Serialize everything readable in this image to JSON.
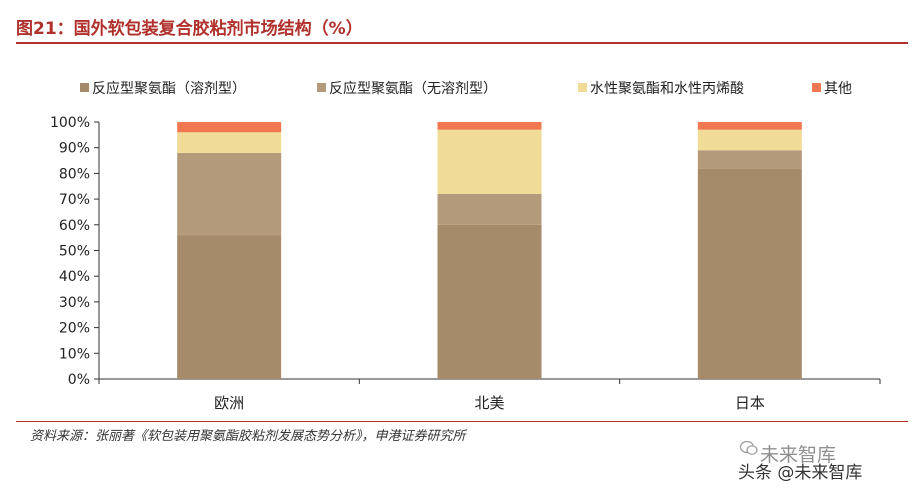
{
  "figure": {
    "title": "图21：国外软包装复合胶粘剂市场结构（%）",
    "source": "资料来源：张丽著《软包装用聚氨酯胶粘剂发展态势分析》，申港证券研究所"
  },
  "watermark": {
    "line1": "未来智库",
    "line2": "头条 @未来智库",
    "icon": "wechat-icon"
  },
  "chart_data": {
    "type": "bar",
    "stacked": true,
    "categories": [
      "欧洲",
      "北美",
      "日本"
    ],
    "series": [
      {
        "name": "反应型聚氨酯（溶剂型）",
        "values": [
          56,
          60,
          82
        ],
        "color": "#a68b6b"
      },
      {
        "name": "反应型聚氨酯（无溶剂型）",
        "values": [
          32,
          12,
          7
        ],
        "color": "#b39a7a"
      },
      {
        "name": "水性聚氨酯和水性丙烯酸",
        "values": [
          8,
          25,
          8
        ],
        "color": "#f0dc96"
      },
      {
        "name": "其他",
        "values": [
          4,
          3,
          3
        ],
        "color": "#f07850"
      }
    ],
    "ylim": [
      0,
      100
    ],
    "yticks": [
      "0%",
      "10%",
      "20%",
      "30%",
      "40%",
      "50%",
      "60%",
      "70%",
      "80%",
      "90%",
      "100%"
    ],
    "grid": false,
    "legend": "top"
  }
}
